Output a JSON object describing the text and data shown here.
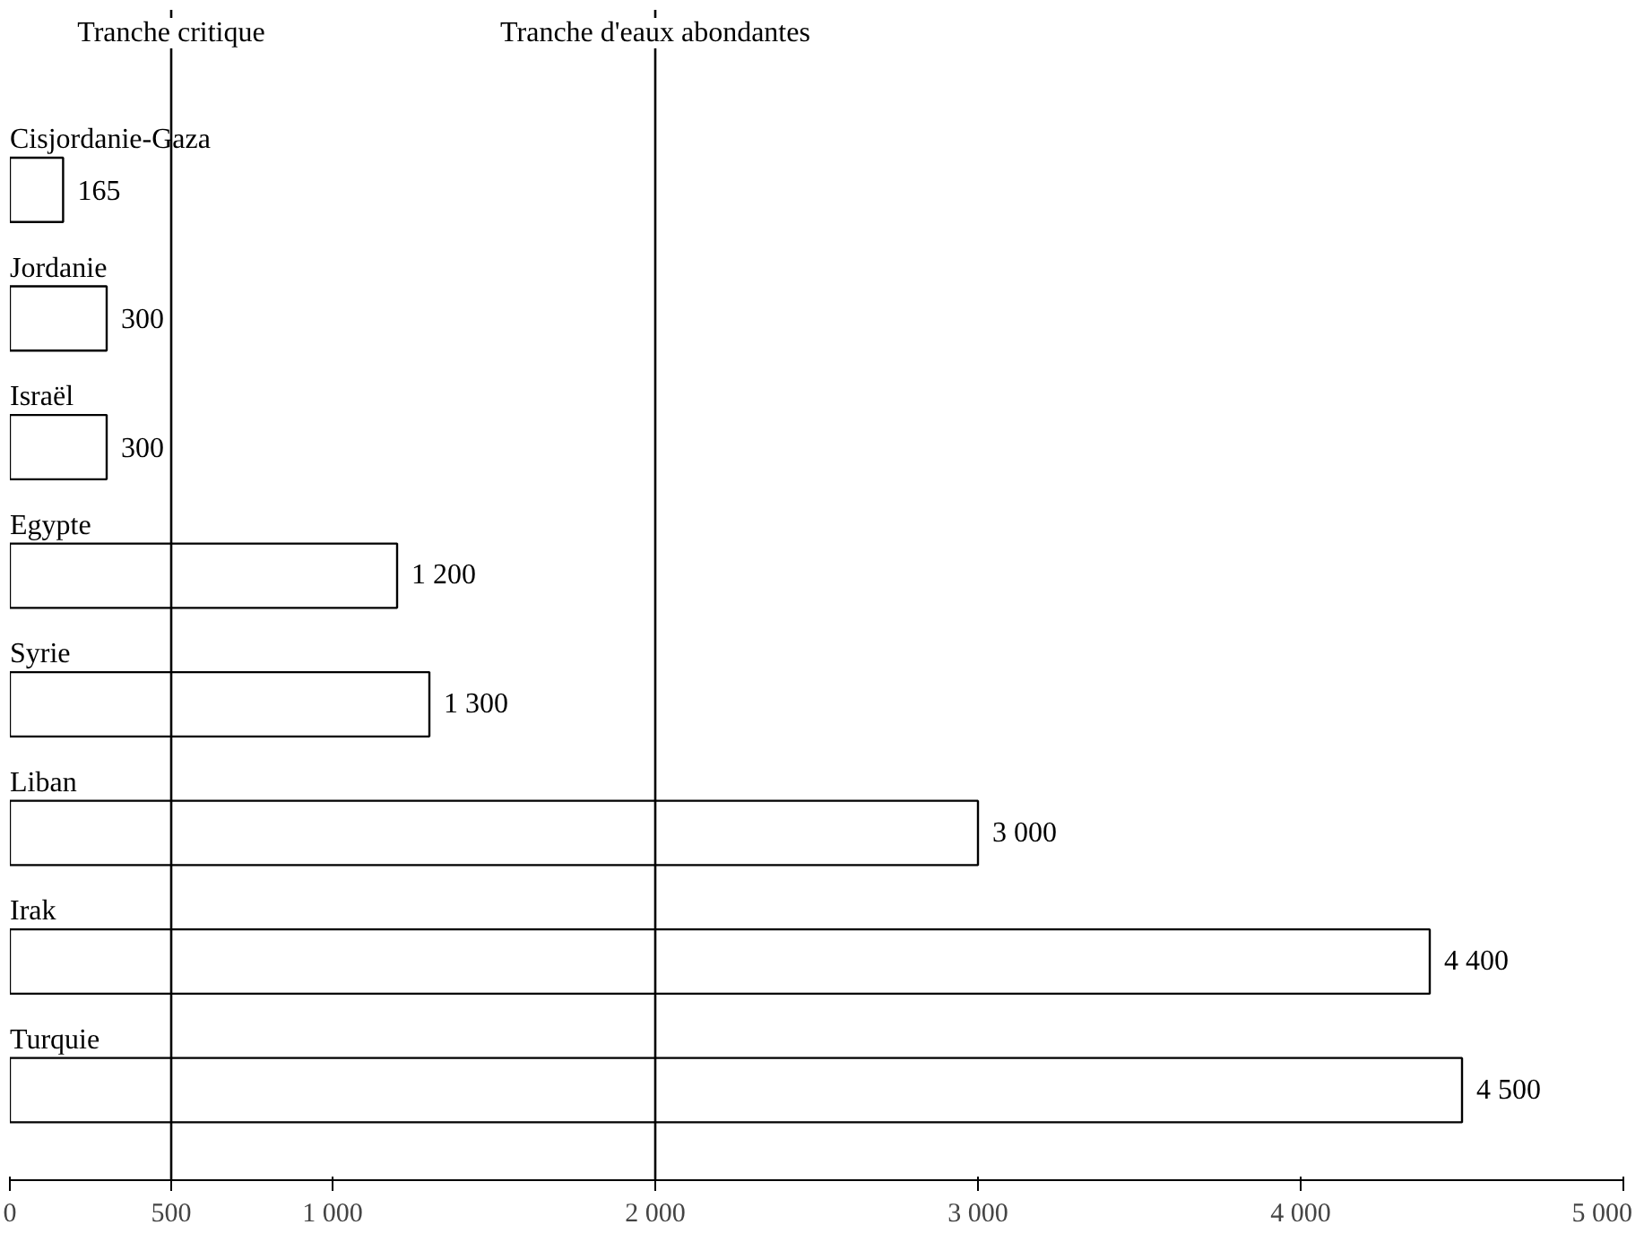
{
  "chart_data": {
    "type": "bar",
    "orientation": "horizontal",
    "categories": [
      "Cisjordanie-Gaza",
      "Jordanie",
      "Israël",
      "Egypte",
      "Syrie",
      "Liban",
      "Irak",
      "Turquie"
    ],
    "values": [
      165,
      300,
      300,
      1200,
      1300,
      3000,
      4400,
      4500
    ],
    "value_labels": [
      "165",
      "300",
      "300",
      "1 200",
      "1 300",
      "3 000",
      "4 400",
      "4 500"
    ],
    "color": "#ffffff",
    "xlim": [
      0,
      5000
    ],
    "xticks": [
      0,
      500,
      {
        "value": 1000,
        "label": "1 000"
      },
      {
        "value": 2000,
        "label": "2 000"
      },
      {
        "value": 3000,
        "label": "3 000"
      },
      {
        "value": 4000,
        "label": "4 000"
      },
      {
        "value": 5000,
        "label": "5 000"
      }
    ],
    "ref_lines": [
      {
        "axis": "x",
        "value": 500,
        "label": "Tranche critique"
      },
      {
        "axis": "x",
        "value": 2000,
        "label": "Tranche d'eaux abondantes"
      }
    ],
    "grid": false,
    "tick_labels": "x"
  }
}
